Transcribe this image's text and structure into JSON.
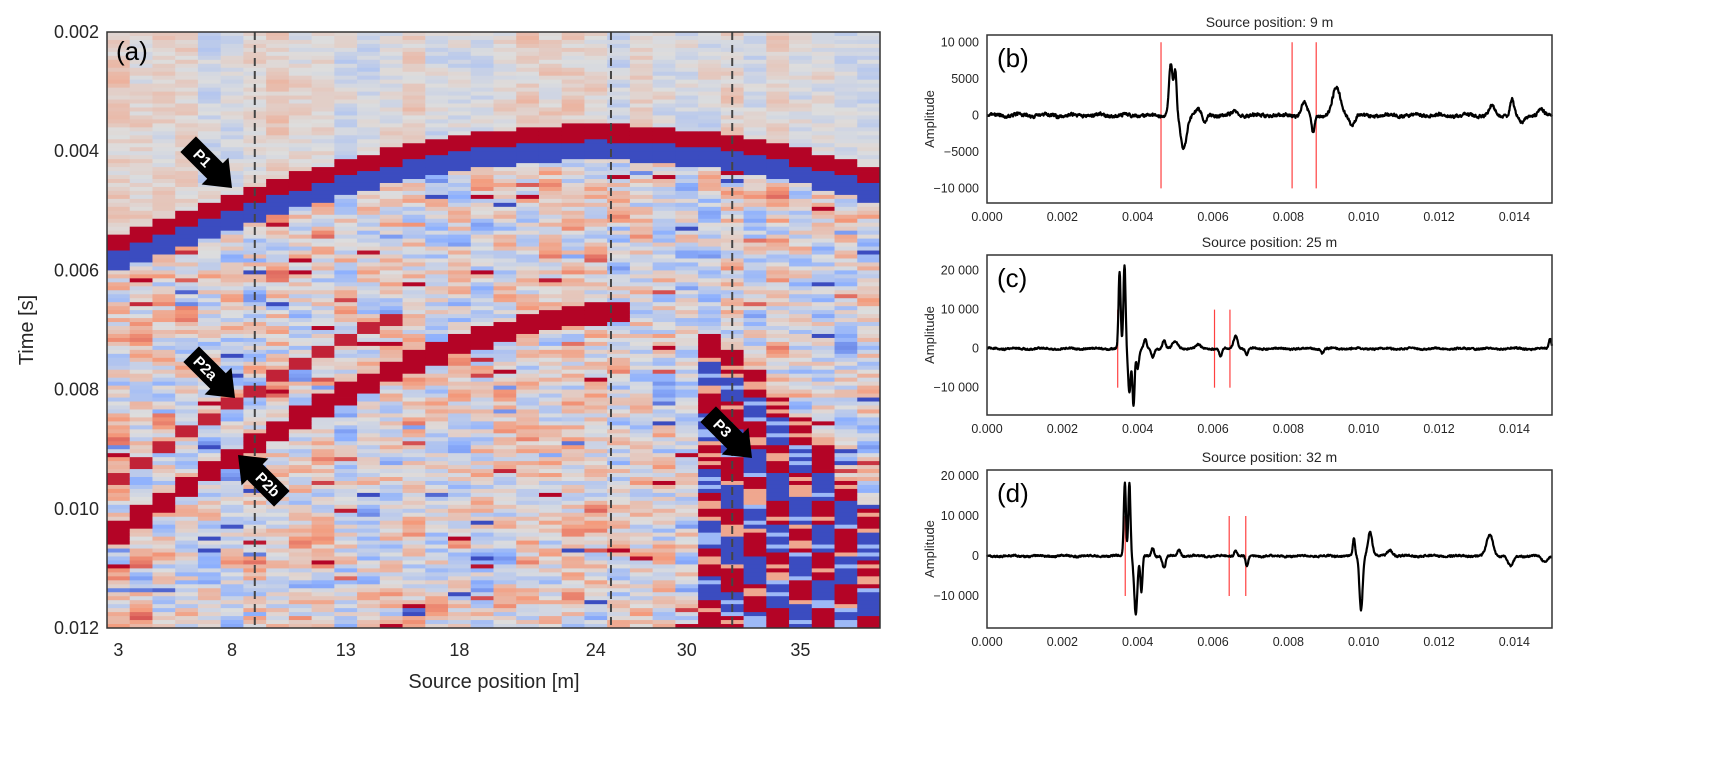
{
  "colors": {
    "coolwarm_low": "#3b4cc0",
    "coolwarm_mid": "#dddddd",
    "coolwarm_high": "#b40426",
    "trace": "#000000",
    "pick_lines": "#ff4040",
    "dashed_lines": "#444444"
  },
  "chart_data": [
    {
      "panel": "(a)",
      "type": "heatmap",
      "colormap": "coolwarm",
      "xlabel": "Source position [m]",
      "ylabel": "Time [s]",
      "x_ticks": [
        "3",
        "8",
        "13",
        "18",
        "24",
        "30",
        "35"
      ],
      "y_ticks": [
        "0.002",
        "0.004",
        "0.006",
        "0.008",
        "0.010",
        "0.012"
      ],
      "ylim": [
        0.012,
        0.002
      ],
      "y_inverted": true,
      "grid": false,
      "dashed_lines_source_position_m": [
        9,
        25,
        32
      ],
      "annotations": [
        {
          "text": "P1",
          "direction": "down-right"
        },
        {
          "text": "P2a",
          "direction": "down-right"
        },
        {
          "text": "P2b",
          "direction": "up-left"
        },
        {
          "text": "P3",
          "direction": "down-right"
        }
      ]
    },
    {
      "panel": "(b)",
      "type": "line",
      "title": "Source position: 9 m",
      "ylabel": "Amplitude",
      "xlim": [
        0,
        0.015
      ],
      "ylim": [
        -12000,
        11000
      ],
      "x_ticks": [
        "0.000",
        "0.002",
        "0.004",
        "0.006",
        "0.008",
        "0.010",
        "0.012",
        "0.014"
      ],
      "y_ticks": [
        "10 000",
        "5000",
        "0",
        "−5000",
        "−10 000"
      ],
      "y_tick_values": [
        10000,
        5000,
        0,
        -5000,
        -10000
      ],
      "picks_s": [
        0.00462,
        0.0081,
        0.00874
      ],
      "peak_amplitude": 7500
    },
    {
      "panel": "(c)",
      "type": "line",
      "title": "Source position: 25 m",
      "ylabel": "Amplitude",
      "xlim": [
        0,
        0.015
      ],
      "ylim": [
        -17000,
        24000
      ],
      "x_ticks": [
        "0.000",
        "0.002",
        "0.004",
        "0.006",
        "0.008",
        "0.010",
        "0.012",
        "0.014"
      ],
      "y_ticks": [
        "20 000",
        "10 000",
        "0",
        "−10 000"
      ],
      "y_tick_values": [
        20000,
        10000,
        0,
        -10000
      ],
      "picks_s": [
        0.00347,
        0.00604,
        0.00645
      ],
      "peak_amplitude": 22000
    },
    {
      "panel": "(d)",
      "type": "line",
      "title": "Source position: 32 m",
      "ylabel": "Amplitude",
      "xlim": [
        0,
        0.015
      ],
      "ylim": [
        -18000,
        21500
      ],
      "x_ticks": [
        "0.000",
        "0.002",
        "0.004",
        "0.006",
        "0.008",
        "0.010",
        "0.012",
        "0.014"
      ],
      "y_ticks": [
        "20 000",
        "10 000",
        "0",
        "−10 000"
      ],
      "y_tick_values": [
        20000,
        10000,
        0,
        -10000
      ],
      "picks_s": [
        0.00367,
        0.00643,
        0.00687
      ],
      "peak_amplitude": 19000
    }
  ]
}
